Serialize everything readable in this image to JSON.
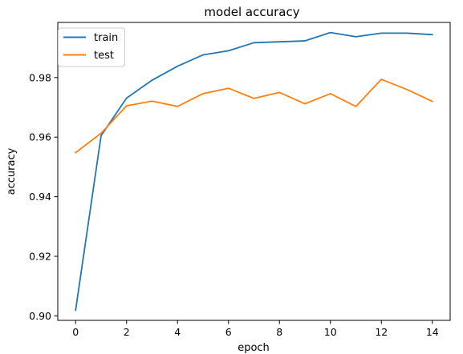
{
  "chart_data": {
    "type": "line",
    "title": "model accuracy",
    "xlabel": "epoch",
    "ylabel": "accuracy",
    "xlim": [
      -0.7,
      14.7
    ],
    "ylim": [
      0.8985,
      0.9985
    ],
    "xticks": [
      0,
      2,
      4,
      6,
      8,
      10,
      12,
      14
    ],
    "yticks": [
      0.9,
      0.92,
      0.94,
      0.96,
      0.98
    ],
    "ytick_labels": [
      "0.90",
      "0.92",
      "0.94",
      "0.96",
      "0.98"
    ],
    "grid": false,
    "legend_position": "top-left",
    "x": [
      0,
      1,
      2,
      3,
      4,
      5,
      6,
      7,
      8,
      9,
      10,
      11,
      12,
      13,
      14
    ],
    "series": [
      {
        "name": "train",
        "color": "#1f77b4",
        "values": [
          0.9019,
          0.9605,
          0.9731,
          0.9791,
          0.9838,
          0.9876,
          0.989,
          0.9917,
          0.992,
          0.9923,
          0.9951,
          0.9937,
          0.9949,
          0.9949,
          0.9944
        ]
      },
      {
        "name": "test",
        "color": "#ff7f0e",
        "values": [
          0.9548,
          0.9613,
          0.9705,
          0.9721,
          0.9703,
          0.9746,
          0.9764,
          0.973,
          0.975,
          0.9712,
          0.9746,
          0.9703,
          0.9794,
          0.976,
          0.972
        ]
      }
    ]
  }
}
